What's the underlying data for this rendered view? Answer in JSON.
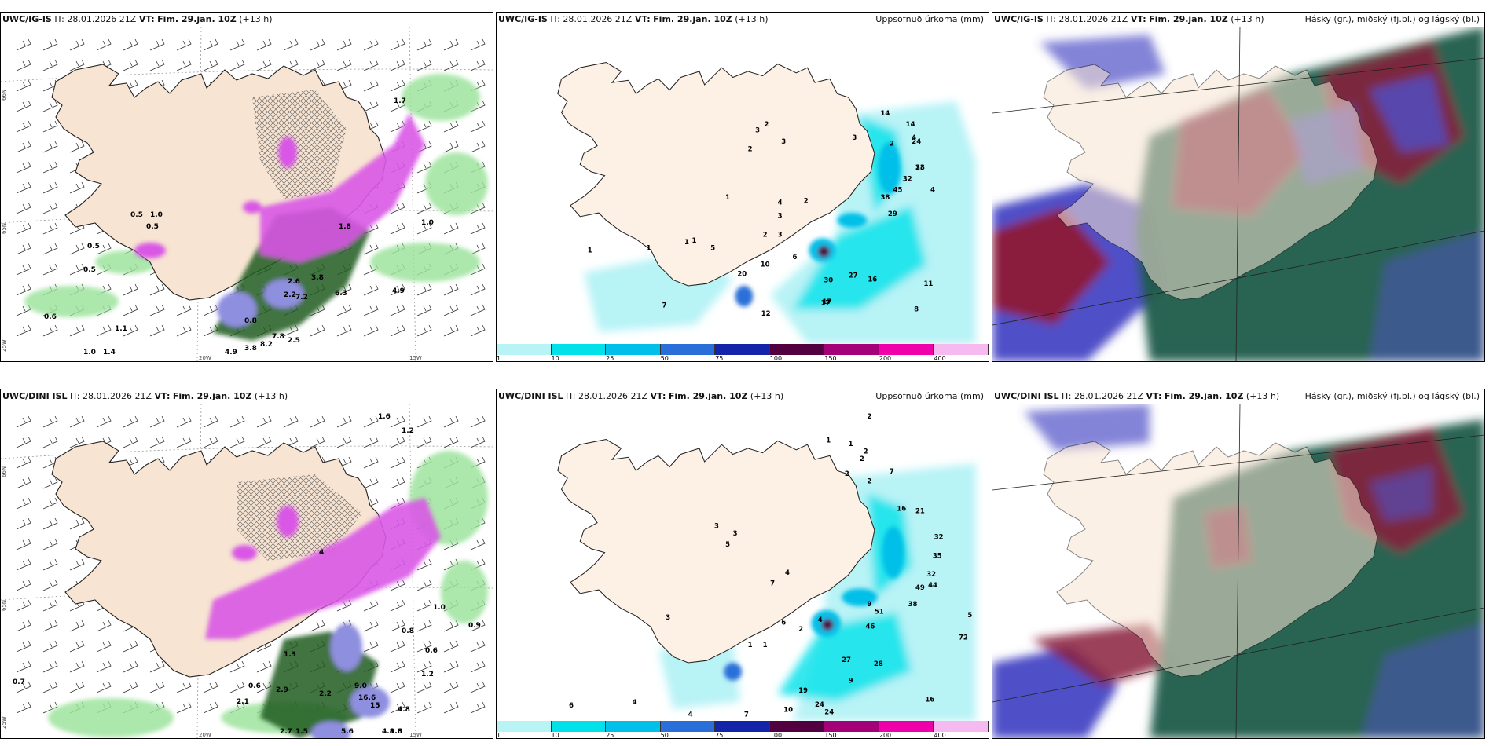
{
  "panels": [
    {
      "id": "ig-wind",
      "model": "UWC/IG-IS",
      "it_label": "IT:",
      "it_value": "28.01.2026 21Z",
      "vt_label": "VT:",
      "vt_value": "Fim. 29.jan. 10Z",
      "lead": "(+13 h)",
      "right_title": "",
      "axis_labels": [
        "66N",
        "65N",
        "64N",
        "25W",
        "20W",
        "15W"
      ],
      "values": [
        "0.5",
        "1.0",
        "0.5",
        "0.6",
        "1.1",
        "1.0",
        "1.4",
        "0.5",
        "0.5",
        "1.8",
        "1.7",
        "2.6",
        "6.3",
        "2.2",
        "4.9",
        "7.8",
        "8.2",
        "3.8",
        "4.9",
        "2.5",
        "0.8",
        "7.2",
        "3.8",
        "1.0"
      ]
    },
    {
      "id": "ig-precip",
      "model": "UWC/IG-IS",
      "it_label": "IT:",
      "it_value": "28.01.2026 21Z",
      "vt_label": "VT:",
      "vt_value": "Fim. 29.jan. 10Z",
      "lead": "(+13 h)",
      "right_title": "Uppsöfnuð úrkoma (mm)",
      "values": [
        "1",
        "3",
        "2",
        "2",
        "1",
        "2",
        "3",
        "3",
        "2",
        "4",
        "4",
        "14",
        "14",
        "24",
        "28",
        "33",
        "32",
        "45",
        "29",
        "38",
        "6",
        "3",
        "2",
        "1",
        "10",
        "20",
        "27",
        "30",
        "16",
        "17",
        "11",
        "17",
        "7",
        "12",
        "8",
        "3",
        "4",
        "5",
        "1",
        "1"
      ],
      "colorbar": {
        "ticks": [
          "1",
          "10",
          "25",
          "50",
          "75",
          "100",
          "150",
          "200",
          "400"
        ],
        "colors": [
          "#b8f3f6",
          "#00e1ea",
          "#00bfe8",
          "#2a6fd9",
          "#1424a8",
          "#520040",
          "#a40077",
          "#f000a8",
          "#f6b9f0"
        ]
      }
    },
    {
      "id": "ig-cloud",
      "model": "UWC/IG-IS",
      "it_label": "IT:",
      "it_value": "28.01.2026 21Z",
      "vt_label": "VT:",
      "vt_value": "Fim. 29.jan. 10Z",
      "lead": "(+13 h)",
      "right_title": "Hásky (gr.), miðský (fj.bl.) og lágský (bl.)"
    },
    {
      "id": "dini-wind",
      "model": "UWC/DINI ISL",
      "it_label": "IT:",
      "it_value": "28.01.2026 21Z",
      "vt_label": "VT:",
      "vt_value": "Fim. 29.jan. 10Z",
      "lead": "(+13 h)",
      "right_title": "",
      "axis_labels": [
        "66N",
        "65N",
        "64N",
        "25W",
        "20W",
        "15W"
      ],
      "values": [
        "1.6",
        "1.2",
        "0.7",
        "0.9",
        "0.8",
        "0.6",
        "1.2",
        "1.3",
        "2.9",
        "4",
        "1.0",
        "2.7",
        "1.5",
        "5.6",
        "4.8",
        "9.0",
        "9.6",
        "15",
        "16.6",
        "1.8",
        "4.8",
        "2.2",
        "2.1",
        "0.6"
      ]
    },
    {
      "id": "dini-precip",
      "model": "UWC/DINI ISL",
      "it_label": "IT:",
      "it_value": "28.01.2026 21Z",
      "vt_label": "VT:",
      "vt_value": "Fim. 29.jan. 10Z",
      "lead": "(+13 h)",
      "right_title": "Uppsöfnuð úrkoma (mm)",
      "values": [
        "2",
        "1",
        "1",
        "2",
        "2",
        "2",
        "7",
        "2",
        "16",
        "21",
        "32",
        "35",
        "32",
        "44",
        "49",
        "38",
        "51",
        "46",
        "3",
        "3",
        "3",
        "5",
        "7",
        "4",
        "6",
        "9",
        "4",
        "2",
        "1",
        "1",
        "27",
        "28",
        "19",
        "24",
        "24",
        "16",
        "9",
        "10",
        "7",
        "4",
        "4",
        "6",
        "5",
        "72"
      ],
      "colorbar": {
        "ticks": [
          "1",
          "10",
          "25",
          "50",
          "75",
          "100",
          "150",
          "200",
          "400"
        ],
        "colors": [
          "#b8f3f6",
          "#00e1ea",
          "#00bfe8",
          "#2a6fd9",
          "#1424a8",
          "#520040",
          "#a40077",
          "#f000a8",
          "#f6b9f0"
        ]
      }
    },
    {
      "id": "dini-cloud",
      "model": "UWC/DINI ISL",
      "it_label": "IT:",
      "it_value": "28.01.2026 21Z",
      "vt_label": "VT:",
      "vt_value": "Fim. 29.jan. 10Z",
      "lead": "(+13 h)",
      "right_title": "Hásky (gr.), miðský (fj.bl.) og lágský (bl.)"
    }
  ],
  "colors": {
    "land": "#f7e4d2",
    "sea": "#ffffff",
    "wind_green": "#9ee39e",
    "wind_dark": "#1f5c1f",
    "snow_magenta": "#d957e6",
    "snow_lav": "#8f8fe0",
    "cloud_dark": "#1f5b4a",
    "cloud_red": "#8a1e3c",
    "cloud_blue": "#5050c8"
  }
}
